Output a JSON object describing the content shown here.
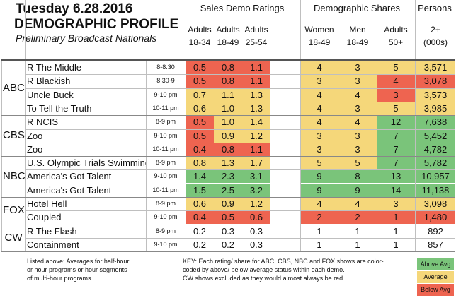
{
  "header": {
    "title": "Tuesday 6.28.2016",
    "subtitle": "DEMOGRAPHIC PROFILE",
    "subtitle2": "Preliminary Broadcast Nationals",
    "group_ratings": "Sales Demo Ratings",
    "group_shares": "Demographic Shares",
    "group_persons": "Persons"
  },
  "columns": [
    {
      "l1": "Adults",
      "l2": "18-34"
    },
    {
      "l1": "Adults",
      "l2": "18-49"
    },
    {
      "l1": "Adults",
      "l2": "25-54"
    },
    {
      "l1": "Women",
      "l2": "18-49"
    },
    {
      "l1": "Men",
      "l2": "18-49"
    },
    {
      "l1": "Adults",
      "l2": "50+"
    },
    {
      "l1": "2+",
      "l2": "(000s)"
    }
  ],
  "networks": [
    "ABC",
    "CBS",
    "NBC",
    "FOX",
    "CW"
  ],
  "colors": {
    "above": "#7ac47a",
    "average": "#f5d77a",
    "below": "#ee6450",
    "grid": "#bfbfbf"
  },
  "chart_data": {
    "type": "table",
    "title": "Tuesday 6.28.2016 DEMOGRAPHIC PROFILE",
    "rows": [
      {
        "network": "ABC",
        "show": "R The Middle",
        "time": "8-8:30",
        "values": [
          "0.5",
          "0.8",
          "1.1",
          "4",
          "3",
          "5",
          "3,571"
        ],
        "status": [
          "below",
          "below",
          "below",
          "average",
          "average",
          "average",
          "average"
        ]
      },
      {
        "network": "ABC",
        "show": "R Blackish",
        "time": "8:30-9",
        "values": [
          "0.5",
          "0.8",
          "1.1",
          "3",
          "3",
          "4",
          "3,078"
        ],
        "status": [
          "below",
          "below",
          "below",
          "average",
          "average",
          "below",
          "below"
        ]
      },
      {
        "network": "ABC",
        "show": "Uncle Buck",
        "time": "9-10 pm",
        "values": [
          "0.7",
          "1.1",
          "1.3",
          "4",
          "4",
          "3",
          "3,573"
        ],
        "status": [
          "average",
          "average",
          "average",
          "average",
          "average",
          "below",
          "average"
        ]
      },
      {
        "network": "ABC",
        "show": "To Tell the Truth",
        "time": "10-11 pm",
        "values": [
          "0.6",
          "1.0",
          "1.3",
          "4",
          "3",
          "5",
          "3,985"
        ],
        "status": [
          "average",
          "average",
          "average",
          "average",
          "average",
          "average",
          "average"
        ]
      },
      {
        "network": "CBS",
        "show": "R NCIS",
        "time": "8-9 pm",
        "values": [
          "0.5",
          "1.0",
          "1.4",
          "4",
          "4",
          "12",
          "7,638"
        ],
        "status": [
          "below",
          "average",
          "average",
          "average",
          "average",
          "above",
          "above"
        ]
      },
      {
        "network": "CBS",
        "show": "Zoo",
        "time": "9-10 pm",
        "values": [
          "0.5",
          "0.9",
          "1.2",
          "3",
          "3",
          "7",
          "5,452"
        ],
        "status": [
          "below",
          "average",
          "average",
          "average",
          "average",
          "above",
          "above"
        ]
      },
      {
        "network": "CBS",
        "show": "Zoo",
        "time": "10-11 pm",
        "values": [
          "0.4",
          "0.8",
          "1.1",
          "3",
          "3",
          "7",
          "4,782"
        ],
        "status": [
          "below",
          "below",
          "below",
          "average",
          "average",
          "above",
          "above"
        ]
      },
      {
        "network": "NBC",
        "show": "U.S. Olympic Trials Swimming",
        "time": "8-9 pm",
        "values": [
          "0.8",
          "1.3",
          "1.7",
          "5",
          "5",
          "7",
          "5,782"
        ],
        "status": [
          "average",
          "average",
          "average",
          "average",
          "average",
          "above",
          "above"
        ]
      },
      {
        "network": "NBC",
        "show": "America's Got Talent",
        "time": "9-10 pm",
        "values": [
          "1.4",
          "2.3",
          "3.1",
          "9",
          "8",
          "13",
          "10,957"
        ],
        "status": [
          "above",
          "above",
          "above",
          "above",
          "above",
          "above",
          "above"
        ]
      },
      {
        "network": "NBC",
        "show": "America's Got Talent",
        "time": "10-11 pm",
        "values": [
          "1.5",
          "2.5",
          "3.2",
          "9",
          "9",
          "14",
          "11,138"
        ],
        "status": [
          "above",
          "above",
          "above",
          "above",
          "above",
          "above",
          "above"
        ]
      },
      {
        "network": "FOX",
        "show": "Hotel Hell",
        "time": "8-9 pm",
        "values": [
          "0.6",
          "0.9",
          "1.2",
          "4",
          "4",
          "3",
          "3,098"
        ],
        "status": [
          "average",
          "average",
          "average",
          "average",
          "average",
          "average",
          "average"
        ]
      },
      {
        "network": "FOX",
        "show": "Coupled",
        "time": "9-10 pm",
        "values": [
          "0.4",
          "0.5",
          "0.6",
          "2",
          "2",
          "1",
          "1,480"
        ],
        "status": [
          "below",
          "below",
          "below",
          "below",
          "below",
          "below",
          "below"
        ]
      },
      {
        "network": "CW",
        "show": "R The Flash",
        "time": "8-9 pm",
        "values": [
          "0.2",
          "0.3",
          "0.3",
          "1",
          "1",
          "1",
          "892"
        ],
        "status": [
          "none",
          "none",
          "none",
          "none",
          "none",
          "none",
          "none"
        ]
      },
      {
        "network": "CW",
        "show": "Containment",
        "time": "9-10 pm",
        "values": [
          "0.2",
          "0.2",
          "0.3",
          "1",
          "1",
          "1",
          "857"
        ],
        "status": [
          "none",
          "none",
          "none",
          "none",
          "none",
          "none",
          "none"
        ]
      }
    ]
  },
  "footer": {
    "note_left": [
      "Listed above: Averages for half-hour",
      "or hour programs or hour segments",
      "of multi-hour programs."
    ],
    "key": [
      "KEY: Each rating/ share for ABC, CBS, NBC and FOX shows are color-",
      "coded by above/ below average status within each demo.",
      "CW shows excluded as they would almost always be red."
    ],
    "legend": {
      "above": "Above Avg",
      "average": "Average",
      "below": "Below Avg"
    }
  }
}
